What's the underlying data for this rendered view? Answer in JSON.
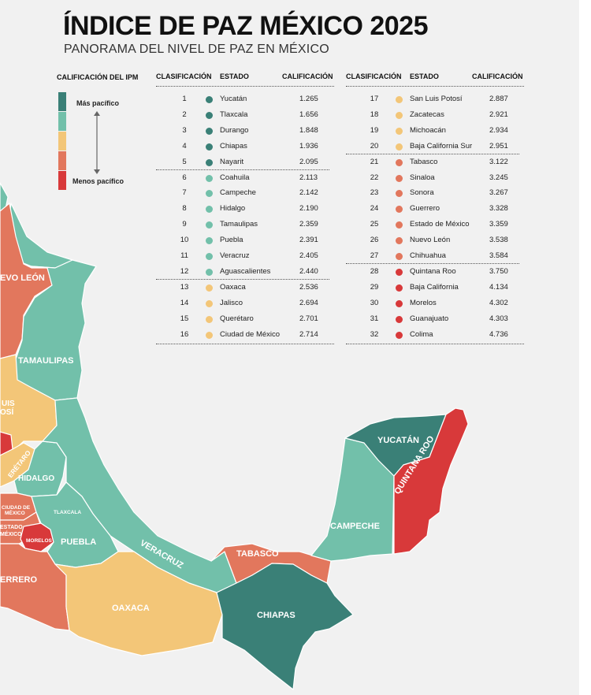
{
  "title": "ÍNDICE DE PAZ MÉXICO 2025",
  "subtitle": "PANORAMA DEL NIVEL DE PAZ EN MÉXICO",
  "legend": {
    "title": "CALIFICACIÓN DEL IPM",
    "most": "Más pacífico",
    "least": "Menos pacífico",
    "colors": [
      "#3a8077",
      "#72c0aa",
      "#f3c678",
      "#e2775d",
      "#d8393a"
    ]
  },
  "table": {
    "headers": {
      "rank": "CLASIFICACIÓN",
      "state": "ESTADO",
      "score": "CALIFICACIÓN"
    },
    "rows": [
      {
        "rank": "1",
        "state": "Yucatán",
        "score": "1.265",
        "tier": 0
      },
      {
        "rank": "2",
        "state": "Tlaxcala",
        "score": "1.656",
        "tier": 0
      },
      {
        "rank": "3",
        "state": "Durango",
        "score": "1.848",
        "tier": 0
      },
      {
        "rank": "4",
        "state": "Chiapas",
        "score": "1.936",
        "tier": 0
      },
      {
        "rank": "5",
        "state": "Nayarit",
        "score": "2.095",
        "tier": 0
      },
      {
        "rank": "6",
        "state": "Coahuila",
        "score": "2.113",
        "tier": 1
      },
      {
        "rank": "7",
        "state": "Campeche",
        "score": "2.142",
        "tier": 1
      },
      {
        "rank": "8",
        "state": "Hidalgo",
        "score": "2.190",
        "tier": 1
      },
      {
        "rank": "9",
        "state": "Tamaulipas",
        "score": "2.359",
        "tier": 1
      },
      {
        "rank": "10",
        "state": "Puebla",
        "score": "2.391",
        "tier": 1
      },
      {
        "rank": "11",
        "state": "Veracruz",
        "score": "2.405",
        "tier": 1
      },
      {
        "rank": "12",
        "state": "Aguascalientes",
        "score": "2.440",
        "tier": 1
      },
      {
        "rank": "13",
        "state": "Oaxaca",
        "score": "2.536",
        "tier": 2
      },
      {
        "rank": "14",
        "state": "Jalisco",
        "score": "2.694",
        "tier": 2
      },
      {
        "rank": "15",
        "state": "Querétaro",
        "score": "2.701",
        "tier": 2
      },
      {
        "rank": "16",
        "state": "Ciudad de México",
        "score": "2.714",
        "tier": 2
      },
      {
        "rank": "17",
        "state": "San Luis Potosí",
        "score": "2.887",
        "tier": 2
      },
      {
        "rank": "18",
        "state": "Zacatecas",
        "score": "2.921",
        "tier": 2
      },
      {
        "rank": "19",
        "state": "Michoacán",
        "score": "2.934",
        "tier": 2
      },
      {
        "rank": "20",
        "state": "Baja California Sur",
        "score": "2.951",
        "tier": 2
      },
      {
        "rank": "21",
        "state": "Tabasco",
        "score": "3.122",
        "tier": 3
      },
      {
        "rank": "22",
        "state": "Sinaloa",
        "score": "3.245",
        "tier": 3
      },
      {
        "rank": "23",
        "state": "Sonora",
        "score": "3.267",
        "tier": 3
      },
      {
        "rank": "24",
        "state": "Guerrero",
        "score": "3.328",
        "tier": 3
      },
      {
        "rank": "25",
        "state": "Estado de México",
        "score": "3.359",
        "tier": 3
      },
      {
        "rank": "26",
        "state": "Nuevo León",
        "score": "3.538",
        "tier": 3
      },
      {
        "rank": "27",
        "state": "Chihuahua",
        "score": "3.584",
        "tier": 3
      },
      {
        "rank": "28",
        "state": "Quintana Roo",
        "score": "3.750",
        "tier": 4
      },
      {
        "rank": "29",
        "state": "Baja California",
        "score": "4.134",
        "tier": 4
      },
      {
        "rank": "30",
        "state": "Morelos",
        "score": "4.302",
        "tier": 4
      },
      {
        "rank": "31",
        "state": "Guanajuato",
        "score": "4.303",
        "tier": 4
      },
      {
        "rank": "32",
        "state": "Colima",
        "score": "4.736",
        "tier": 4
      }
    ]
  },
  "map_labels": {
    "nuevo_leon": "EVO LEÓN",
    "tamaulipas": "TAMAULIPAS",
    "slp1": "UIS",
    "slp2": "OSÍ",
    "queretaro": "ERÉTARO",
    "hidalgo": "HIDALGO",
    "cdmx1": "CIUDAD DE",
    "cdmx2": "MÉXICO",
    "edomex1": "ESTADO",
    "edomex2": "MÉXICO",
    "tlaxcala": "TLAXCALA",
    "morelos": "MORELOS",
    "puebla": "PUEBLA",
    "veracruz": "VERACRUZ",
    "guerrero": "ERRERO",
    "oaxaca": "OAXACA",
    "tabasco": "TABASCO",
    "chiapas": "CHIAPAS",
    "campeche": "CAMPECHE",
    "yucatan": "YUCATÁN",
    "quintana_roo": "QUINTANA ROO"
  }
}
